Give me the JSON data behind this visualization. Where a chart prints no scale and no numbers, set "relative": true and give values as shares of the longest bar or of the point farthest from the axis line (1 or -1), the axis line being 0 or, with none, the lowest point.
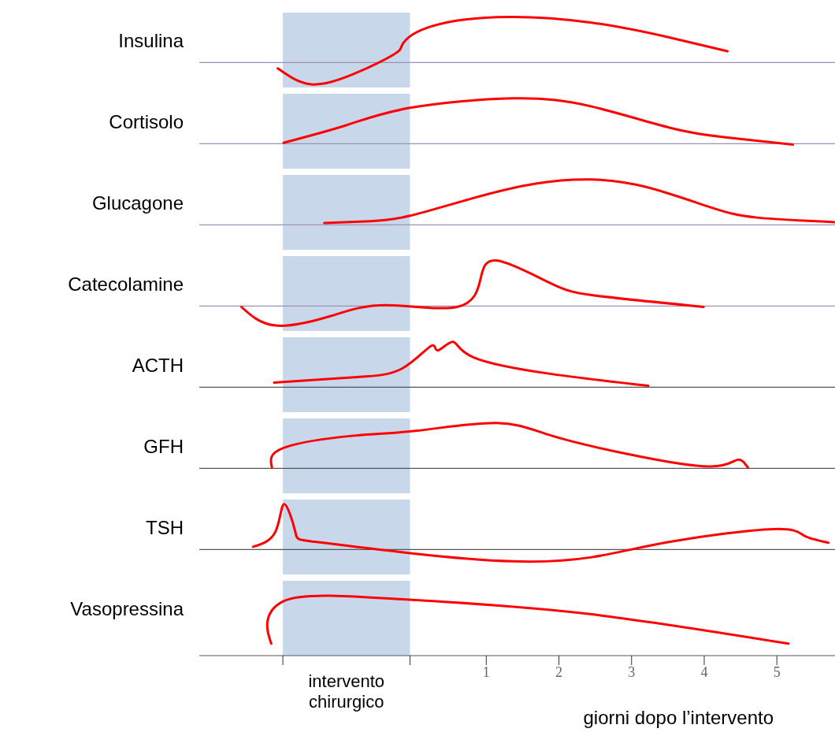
{
  "chart_data": [
    {
      "type": "line",
      "ylabel": "Insulina",
      "relative": true,
      "xlim": [
        -2.95,
        5.8
      ],
      "tick_labels": false,
      "bands": [
        {
          "axis": "x",
          "from": -1.8,
          "to": -0.05,
          "color": "#c9d7ea"
        }
      ],
      "x": [
        -1.87,
        -1.41,
        -0.82,
        -0.27,
        -0.16,
        0.16,
        1.14,
        2.45,
        3.53,
        4.32
      ],
      "series": [
        {
          "color": "#ff0000",
          "values": [
            -0.13,
            -0.48,
            -0.25,
            0.18,
            0.38,
            0.75,
            1,
            0.88,
            0.55,
            0.25
          ]
        }
      ]
    },
    {
      "type": "line",
      "ylabel": "Cortisolo",
      "relative": true,
      "xlim": [
        -2.95,
        5.8
      ],
      "tick_labels": false,
      "bands": [
        {
          "axis": "x",
          "from": -1.8,
          "to": -0.05,
          "color": "#c9d7ea"
        }
      ],
      "x": [
        -1.79,
        -0.92,
        -0.05,
        1.36,
        2.45,
        3.53,
        4.29,
        5.22
      ],
      "series": [
        {
          "color": "#ff0000",
          "values": [
            0.02,
            0.41,
            0.79,
            1,
            0.82,
            0.35,
            0.14,
            -0.02
          ]
        }
      ]
    },
    {
      "type": "line",
      "ylabel": "Glucagone",
      "relative": true,
      "xlim": [
        -2.95,
        5.8
      ],
      "tick_labels": false,
      "bands": [
        {
          "axis": "x",
          "from": -1.8,
          "to": -0.05,
          "color": "#c9d7ea"
        }
      ],
      "x": [
        -1.23,
        -0.6,
        -0.05,
        0.82,
        1.68,
        2.45,
        3.21,
        4.08,
        4.73,
        5.8
      ],
      "series": [
        {
          "color": "#ff0000",
          "values": [
            0.04,
            0.08,
            0.2,
            0.59,
            0.91,
            1,
            0.83,
            0.39,
            0.16,
            0.06
          ]
        }
      ]
    },
    {
      "type": "line",
      "ylabel": "Catecolamine",
      "relative": true,
      "xlim": [
        -2.95,
        5.8
      ],
      "tick_labels": false,
      "bands": [
        {
          "axis": "x",
          "from": -1.8,
          "to": -0.05,
          "color": "#c9d7ea"
        }
      ],
      "x": [
        -2.37,
        -1.9,
        -1.14,
        -0.38,
        0.6,
        0.92,
        1.16,
        1.9,
        2.55,
        3.99
      ],
      "series": [
        {
          "color": "#ff0000",
          "values": [
            -0.02,
            -0.43,
            -0.22,
            0.02,
            -0.02,
            0.59,
            1,
            0.49,
            0.22,
            -0.02
          ]
        }
      ]
    },
    {
      "type": "line",
      "ylabel": "ACTH",
      "relative": true,
      "xlim": [
        -2.95,
        5.8
      ],
      "tick_labels": false,
      "bands": [
        {
          "axis": "x",
          "from": -1.8,
          "to": -0.05,
          "color": "#c9d7ea"
        }
      ],
      "x": [
        -1.92,
        -0.82,
        -0.16,
        0.24,
        0.33,
        0.54,
        0.82,
        1.9,
        3.23
      ],
      "series": [
        {
          "color": "#ff0000",
          "values": [
            0.1,
            0.22,
            0.41,
            0.91,
            0.81,
            1,
            0.66,
            0.29,
            0.03
          ]
        }
      ]
    },
    {
      "type": "line",
      "ylabel": "GFH",
      "relative": true,
      "xlim": [
        -2.95,
        5.8
      ],
      "tick_labels": false,
      "bands": [
        {
          "axis": "x",
          "from": -1.8,
          "to": -0.05,
          "color": "#c9d7ea"
        }
      ],
      "x": [
        -1.95,
        -1.79,
        -0.82,
        0.05,
        1.14,
        1.9,
        2.99,
        4.08,
        4.46,
        4.6
      ],
      "series": [
        {
          "color": "#ff0000",
          "values": [
            0.02,
            0.45,
            0.72,
            0.83,
            1,
            0.72,
            0.3,
            0.04,
            0.19,
            0.02
          ]
        }
      ]
    },
    {
      "type": "line",
      "ylabel": "TSH",
      "relative": true,
      "xlim": [
        -2.95,
        5.8
      ],
      "tick_labels": false,
      "bands": [
        {
          "axis": "x",
          "from": -1.8,
          "to": -0.05,
          "color": "#c9d7ea"
        }
      ],
      "x": [
        -2.21,
        -1.9,
        -1.78,
        -1.63,
        -1.36,
        -0.05,
        1.36,
        2.45,
        3.53,
        4.95,
        5.38,
        5.71
      ],
      "series": [
        {
          "color": "#ff0000",
          "values": [
            0.06,
            0.4,
            1,
            0.4,
            0.17,
            -0.08,
            -0.26,
            -0.17,
            0.17,
            0.45,
            0.3,
            0.15
          ]
        }
      ]
    },
    {
      "type": "line",
      "ylabel": "Vasopressina",
      "relative": true,
      "xlim": [
        -2.95,
        5.8
      ],
      "tick_labels": "x",
      "xlabel": "giorni dopo l’intervento",
      "xticks": [
        {
          "value": -1.8,
          "label": null
        },
        {
          "value": -0.05,
          "label": null
        },
        1,
        2,
        3,
        4,
        5
      ],
      "bands": [
        {
          "axis": "x",
          "from": -1.8,
          "to": -0.05,
          "color": "#c9d7ea",
          "label": "intervento chirurgico"
        }
      ],
      "x": [
        -1.96,
        -2.01,
        -1.79,
        -1.14,
        0.27,
        2.45,
        5.16
      ],
      "series": [
        {
          "color": "#ff0000",
          "values": [
            0.2,
            0.58,
            0.91,
            1,
            0.91,
            0.69,
            0.2
          ]
        }
      ]
    }
  ]
}
